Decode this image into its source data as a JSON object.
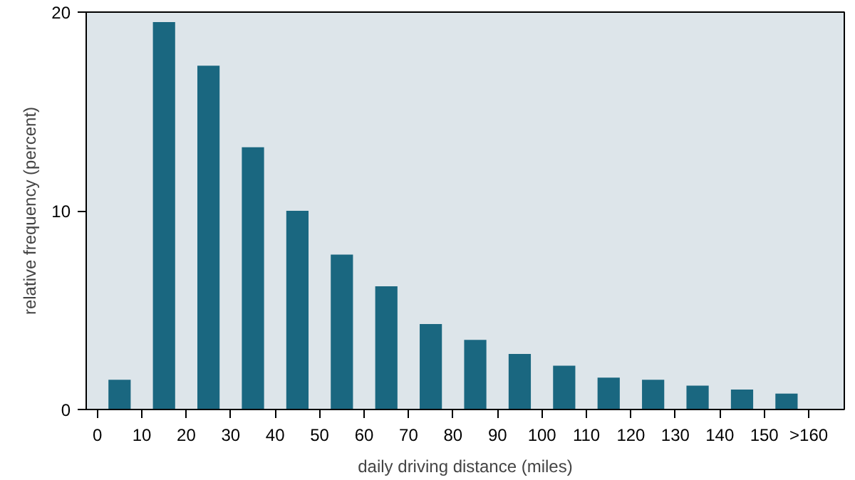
{
  "chart_data": {
    "type": "histogram",
    "xlabel": "daily driving distance (miles)",
    "ylabel": "relative frequency (percent)",
    "bins": [
      0,
      10,
      20,
      30,
      40,
      50,
      60,
      70,
      80,
      90,
      100,
      110,
      120,
      130,
      140,
      150,
      160
    ],
    "values": [
      1.5,
      19.5,
      17.3,
      13.2,
      10.0,
      7.8,
      6.2,
      4.3,
      3.5,
      2.8,
      2.2,
      1.6,
      1.5,
      1.2,
      1.0,
      0.8
    ],
    "color": "#1a6780",
    "xlim": [
      -2.5,
      168
    ],
    "ylim": [
      0,
      20
    ],
    "xticks": [
      0,
      10,
      20,
      30,
      40,
      50,
      60,
      70,
      80,
      90,
      100,
      110,
      120,
      130,
      140,
      150,
      {
        "value": 160,
        "label": ">160"
      }
    ],
    "yticks": [
      0,
      10,
      20
    ],
    "grid": false
  }
}
